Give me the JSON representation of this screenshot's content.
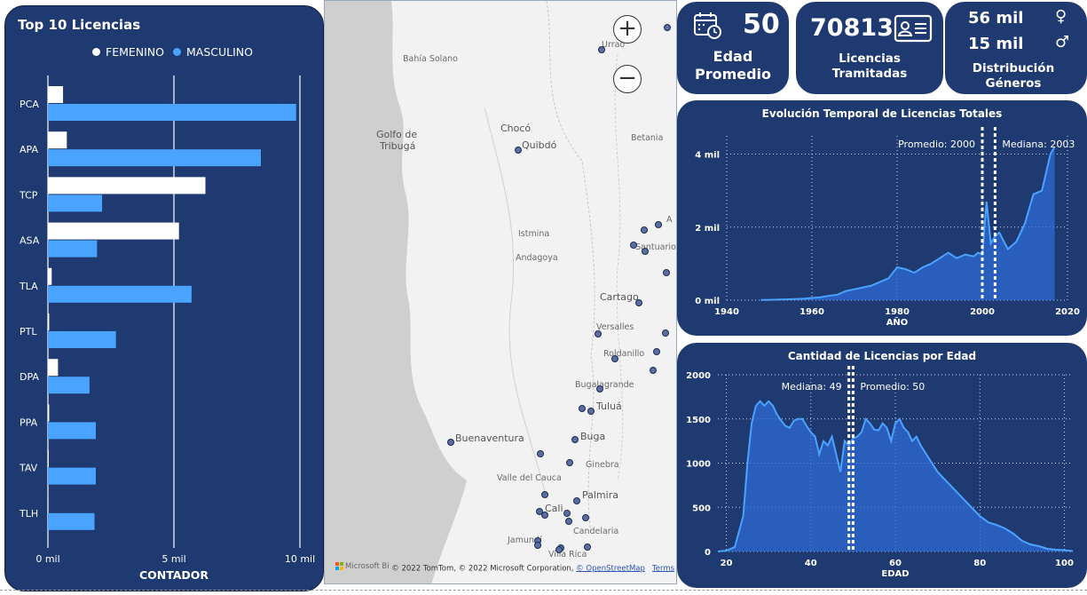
{
  "bar_chart": {
    "title": "Top 10 Licencias",
    "legend": [
      {
        "name": "FEMENINO",
        "color": "#ffffff"
      },
      {
        "name": "MASCULINO",
        "color": "#4aa3ff"
      }
    ],
    "xlabel": "CONTADOR",
    "tick_labels": [
      "0 mil",
      "5 mil",
      "10 mil"
    ]
  },
  "map": {
    "labels": [
      "Urrao",
      "Bahía Solano",
      "Golfo de",
      "Tribugá",
      "Chocó",
      "Quibdó",
      "Betania",
      "Istmina",
      "Andagoya",
      "Santuario",
      "A",
      "Cartago",
      "Versalles",
      "Roldanillo",
      "Bugalagrande",
      "Tuluá",
      "Buenaventura",
      "Buga",
      "Ginebra",
      "Valle del Cauca",
      "Palmira",
      "Cali",
      "Candelaria",
      "Jamundí",
      "Villa Rica"
    ],
    "attribution": "© 2022 TomTom, © 2022 Microsoft Corporation,",
    "osm_link": "© OpenStreetMap",
    "terms_link": "Terms",
    "bing_logo": "Microsoft Bi",
    "zoom_in": "+",
    "zoom_out": "−"
  },
  "kpis": {
    "edad": {
      "value": "50",
      "label1": "Edad",
      "label2": "Promedio",
      "icon": "calendar-clock-icon"
    },
    "licencias": {
      "value": "70813",
      "label1": "Licencias",
      "label2": "Tramitadas",
      "icon": "id-card-icon"
    },
    "generos": {
      "female_value": "56 mil",
      "male_value": "15 mil",
      "female_symbol": "♀",
      "male_symbol": "♂",
      "label1": "Distribución",
      "label2": "Géneros"
    }
  },
  "chart_data": [
    {
      "type": "bar",
      "orientation": "horizontal",
      "title": "Top 10 Licencias",
      "categories": [
        "PCA",
        "APA",
        "TCP",
        "ASA",
        "TLA",
        "PTL",
        "DPA",
        "PPA",
        "TAV",
        "TLH"
      ],
      "series": [
        {
          "name": "FEMENINO",
          "values": [
            600,
            750,
            6250,
            5200,
            150,
            50,
            400,
            50,
            30,
            20
          ]
        },
        {
          "name": "MASCULINO",
          "values": [
            9850,
            8450,
            2150,
            1950,
            5700,
            2700,
            1650,
            1900,
            1900,
            1850
          ]
        }
      ],
      "xlabel": "CONTADOR",
      "xlim": [
        0,
        10000
      ],
      "grid": true,
      "legend": "top"
    },
    {
      "type": "area",
      "title": "Evolución Temporal de Licencias Totales",
      "xlabel": "AÑO",
      "ylabel": "",
      "xlim": [
        1940,
        2020
      ],
      "ylim": [
        0,
        4500
      ],
      "x_ticks": [
        "1940",
        "1960",
        "1980",
        "2000",
        "2020"
      ],
      "y_ticks": [
        "0 mil",
        "2 mil",
        "4 mil"
      ],
      "x": [
        1948,
        1950,
        1952,
        1954,
        1956,
        1958,
        1960,
        1962,
        1964,
        1966,
        1968,
        1970,
        1972,
        1974,
        1976,
        1978,
        1980,
        1982,
        1984,
        1986,
        1988,
        1990,
        1992,
        1994,
        1996,
        1998,
        1999,
        2000,
        2001,
        2002,
        2003,
        2004,
        2006,
        2008,
        2010,
        2012,
        2014,
        2016,
        2017
      ],
      "y": [
        5,
        10,
        15,
        20,
        30,
        40,
        60,
        80,
        120,
        150,
        250,
        300,
        350,
        400,
        500,
        600,
        900,
        850,
        750,
        900,
        1000,
        1150,
        1300,
        1150,
        1250,
        1200,
        1300,
        1250,
        2700,
        1550,
        1750,
        1850,
        1400,
        1600,
        2100,
        2900,
        3000,
        4000,
        4200
      ],
      "reference_lines": [
        {
          "label": "Promedio: 2000",
          "value": 2000
        },
        {
          "label": "Mediana: 2003",
          "value": 2003
        }
      ],
      "grid": true
    },
    {
      "type": "area",
      "title": "Cantidad de Licencias por Edad",
      "xlabel": "EDAD",
      "ylabel": "",
      "xlim": [
        18,
        102
      ],
      "ylim": [
        0,
        2000
      ],
      "x_ticks": [
        "20",
        "40",
        "60",
        "80",
        "100"
      ],
      "y_ticks": [
        "0",
        "500",
        "1000",
        "1500",
        "2000"
      ],
      "x": [
        18,
        20,
        22,
        24,
        25,
        26,
        27,
        28,
        29,
        30,
        31,
        32,
        33,
        34,
        35,
        36,
        37,
        38,
        39,
        40,
        41,
        42,
        43,
        44,
        45,
        46,
        47,
        48,
        49,
        50,
        51,
        52,
        53,
        54,
        55,
        56,
        57,
        58,
        59,
        60,
        61,
        62,
        63,
        64,
        65,
        66,
        68,
        70,
        72,
        74,
        76,
        78,
        80,
        82,
        84,
        86,
        88,
        90,
        92,
        94,
        96,
        98,
        100,
        102
      ],
      "y": [
        0,
        10,
        50,
        400,
        1000,
        1450,
        1650,
        1700,
        1650,
        1700,
        1650,
        1550,
        1480,
        1420,
        1400,
        1480,
        1500,
        1500,
        1420,
        1350,
        1300,
        1100,
        1250,
        1200,
        1300,
        1100,
        900,
        1250,
        1200,
        1280,
        1300,
        1350,
        1500,
        1450,
        1380,
        1370,
        1450,
        1400,
        1250,
        1450,
        1500,
        1400,
        1350,
        1250,
        1300,
        1200,
        1050,
        900,
        800,
        700,
        600,
        500,
        400,
        330,
        300,
        260,
        200,
        120,
        80,
        60,
        30,
        20,
        15,
        5
      ],
      "reference_lines": [
        {
          "label": "Mediana: 49",
          "value": 49
        },
        {
          "label": "Promedio: 50",
          "value": 50
        }
      ],
      "grid": true
    }
  ]
}
